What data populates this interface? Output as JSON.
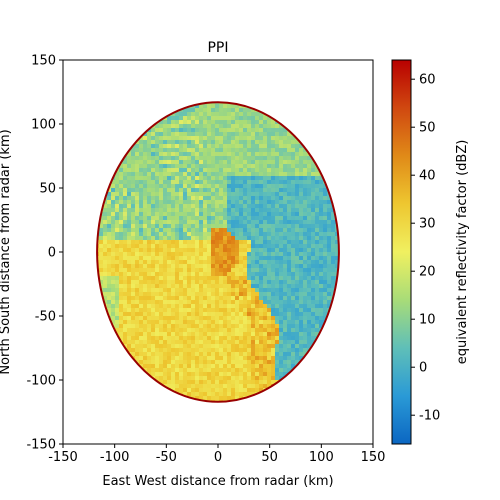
{
  "chart_data": {
    "type": "heatmap",
    "title": "PPI",
    "xlabel": "East West distance from radar (km)",
    "ylabel": "North South distance from radar (km)",
    "xlim": [
      -150,
      150
    ],
    "ylim": [
      -150,
      150
    ],
    "x_ticks": [
      -150,
      -100,
      -50,
      0,
      50,
      100,
      150
    ],
    "y_ticks": [
      -150,
      -100,
      -50,
      0,
      50,
      100,
      150
    ],
    "radar_range_km": 117,
    "colorbar": {
      "label": "equivalent reflectivity factor (dBZ)",
      "range": [
        -16,
        64
      ],
      "ticks": [
        -10,
        0,
        10,
        20,
        30,
        40,
        50,
        60
      ],
      "colors": [
        "#0b66c2",
        "#2a9ad6",
        "#5fbfb8",
        "#a8dc78",
        "#f0f060",
        "#eec730",
        "#e08a18",
        "#d04810",
        "#b80000"
      ]
    },
    "regions": [
      {
        "name": "southwest rain",
        "dbz": 30
      },
      {
        "name": "east clear air",
        "dbz": 2
      },
      {
        "name": "north background",
        "dbz": 12
      },
      {
        "name": "radar core",
        "dbz": 42
      }
    ]
  }
}
